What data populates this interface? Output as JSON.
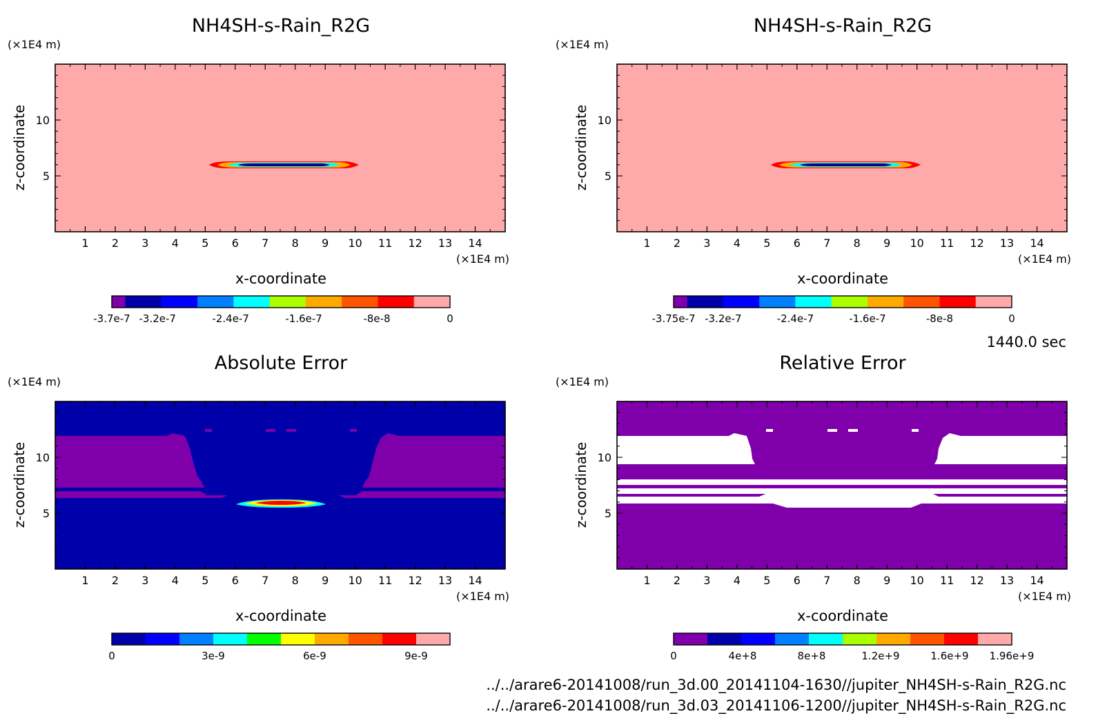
{
  "timestamp": "1440.0 sec",
  "files": [
    "../../arare6-20141008/run_3d.00_20141104-1630//jupiter_NH4SH-s-Rain_R2G.nc",
    "../../arare6-20141008/run_3d.03_20141106-1200//jupiter_NH4SH-s-Rain_R2G.nc"
  ],
  "chart_data": [
    {
      "type": "heatmap",
      "title": "NH4SH-s-Rain_R2G",
      "xlabel": "x-coordinate",
      "ylabel": "z-coordinate",
      "x_unit": "(×1E4 m)",
      "y_unit": "(×1E4 m)",
      "xlim": [
        0,
        15
      ],
      "ylim": [
        0,
        15
      ],
      "x_ticks": [
        "1",
        "2",
        "3",
        "4",
        "5",
        "6",
        "7",
        "8",
        "9",
        "10",
        "11",
        "12",
        "13",
        "14"
      ],
      "y_ticks": [
        "5",
        "10"
      ],
      "background_color": "#ffaaaa",
      "feature": {
        "shape": "thin anomaly band",
        "x_range": [
          5.1,
          10.0
        ],
        "z": 6.0,
        "min_value": -3.7e-07
      },
      "colorbar": {
        "colors": [
          "#7f00aa",
          "#0000aa",
          "#0000ff",
          "#007fff",
          "#00ffff",
          "#aaff00",
          "#ffaa00",
          "#ff5500",
          "#ff0000",
          "#ffaaaa"
        ],
        "tick_labels": [
          "-3.7e-7",
          "-3.2e-7",
          "-2.4e-7",
          "-1.6e-7",
          "-8e-8",
          "0"
        ],
        "tick_values": [
          -3.7e-07,
          -3.2e-07,
          -2.4e-07,
          -1.6e-07,
          -8e-08,
          0
        ],
        "range": [
          -3.7e-07,
          0
        ]
      }
    },
    {
      "type": "heatmap",
      "title": "NH4SH-s-Rain_R2G",
      "xlabel": "x-coordinate",
      "ylabel": "z-coordinate",
      "x_unit": "(×1E4 m)",
      "y_unit": "(×1E4 m)",
      "xlim": [
        0,
        15
      ],
      "ylim": [
        0,
        15
      ],
      "x_ticks": [
        "1",
        "2",
        "3",
        "4",
        "5",
        "6",
        "7",
        "8",
        "9",
        "10",
        "11",
        "12",
        "13",
        "14"
      ],
      "y_ticks": [
        "5",
        "10"
      ],
      "background_color": "#ffaaaa",
      "feature": {
        "shape": "thin anomaly band",
        "x_range": [
          5.1,
          10.0
        ],
        "z": 6.0,
        "min_value": -3.75e-07
      },
      "colorbar": {
        "colors": [
          "#7f00aa",
          "#0000aa",
          "#0000ff",
          "#007fff",
          "#00ffff",
          "#aaff00",
          "#ffaa00",
          "#ff5500",
          "#ff0000",
          "#ffaaaa"
        ],
        "tick_labels": [
          "-3.75e-7",
          "-3.2e-7",
          "-2.4e-7",
          "-1.6e-7",
          "-8e-8",
          "0"
        ],
        "tick_values": [
          -3.75e-07,
          -3.2e-07,
          -2.4e-07,
          -1.6e-07,
          -8e-08,
          0
        ],
        "range": [
          -3.75e-07,
          0
        ]
      }
    },
    {
      "type": "heatmap",
      "title": "Absolute Error",
      "xlabel": "x-coordinate",
      "ylabel": "z-coordinate",
      "x_unit": "(×1E4 m)",
      "y_unit": "(×1E4 m)",
      "xlim": [
        0,
        15
      ],
      "ylim": [
        0,
        15
      ],
      "x_ticks": [
        "1",
        "2",
        "3",
        "4",
        "5",
        "6",
        "7",
        "8",
        "9",
        "10",
        "11",
        "12",
        "13",
        "14"
      ],
      "y_ticks": [
        "5",
        "10"
      ],
      "background_color": "#0000aa",
      "regions_color": "#7f00aa",
      "feature": {
        "shape": "thin anomaly band",
        "x_range": [
          6.1,
          9.1
        ],
        "z": 6.0,
        "max_value": 1e-08
      },
      "colorbar": {
        "colors": [
          "#0000aa",
          "#0000ff",
          "#007fff",
          "#00ffff",
          "#00ff00",
          "#ffff00",
          "#ffaa00",
          "#ff5500",
          "#ff0000",
          "#ffaaaa"
        ],
        "tick_labels": [
          "0",
          "3e-9",
          "6e-9",
          "9e-9"
        ],
        "tick_values": [
          0,
          3e-09,
          6e-09,
          9e-09
        ],
        "range": [
          0,
          1e-08
        ]
      }
    },
    {
      "type": "heatmap",
      "title": "Relative Error",
      "xlabel": "x-coordinate",
      "ylabel": "z-coordinate",
      "x_unit": "(×1E4 m)",
      "y_unit": "(×1E4 m)",
      "xlim": [
        0,
        15
      ],
      "ylim": [
        0,
        15
      ],
      "x_ticks": [
        "1",
        "2",
        "3",
        "4",
        "5",
        "6",
        "7",
        "8",
        "9",
        "10",
        "11",
        "12",
        "13",
        "14"
      ],
      "y_ticks": [
        "5",
        "10"
      ],
      "background_color": "#7f00aa",
      "regions_color": "#ffffff",
      "colorbar": {
        "colors": [
          "#7f00aa",
          "#0000aa",
          "#0000ff",
          "#007fff",
          "#00ffff",
          "#aaff00",
          "#ffaa00",
          "#ff5500",
          "#ff0000",
          "#ffaaaa"
        ],
        "tick_labels": [
          "0",
          "4e+8",
          "8e+8",
          "1.2e+9",
          "1.6e+9",
          "1.96e+9"
        ],
        "tick_values": [
          0,
          400000000.0,
          800000000.0,
          1200000000.0,
          1600000000.0,
          1960000000.0
        ],
        "range": [
          0,
          1960000000.0
        ]
      }
    }
  ]
}
